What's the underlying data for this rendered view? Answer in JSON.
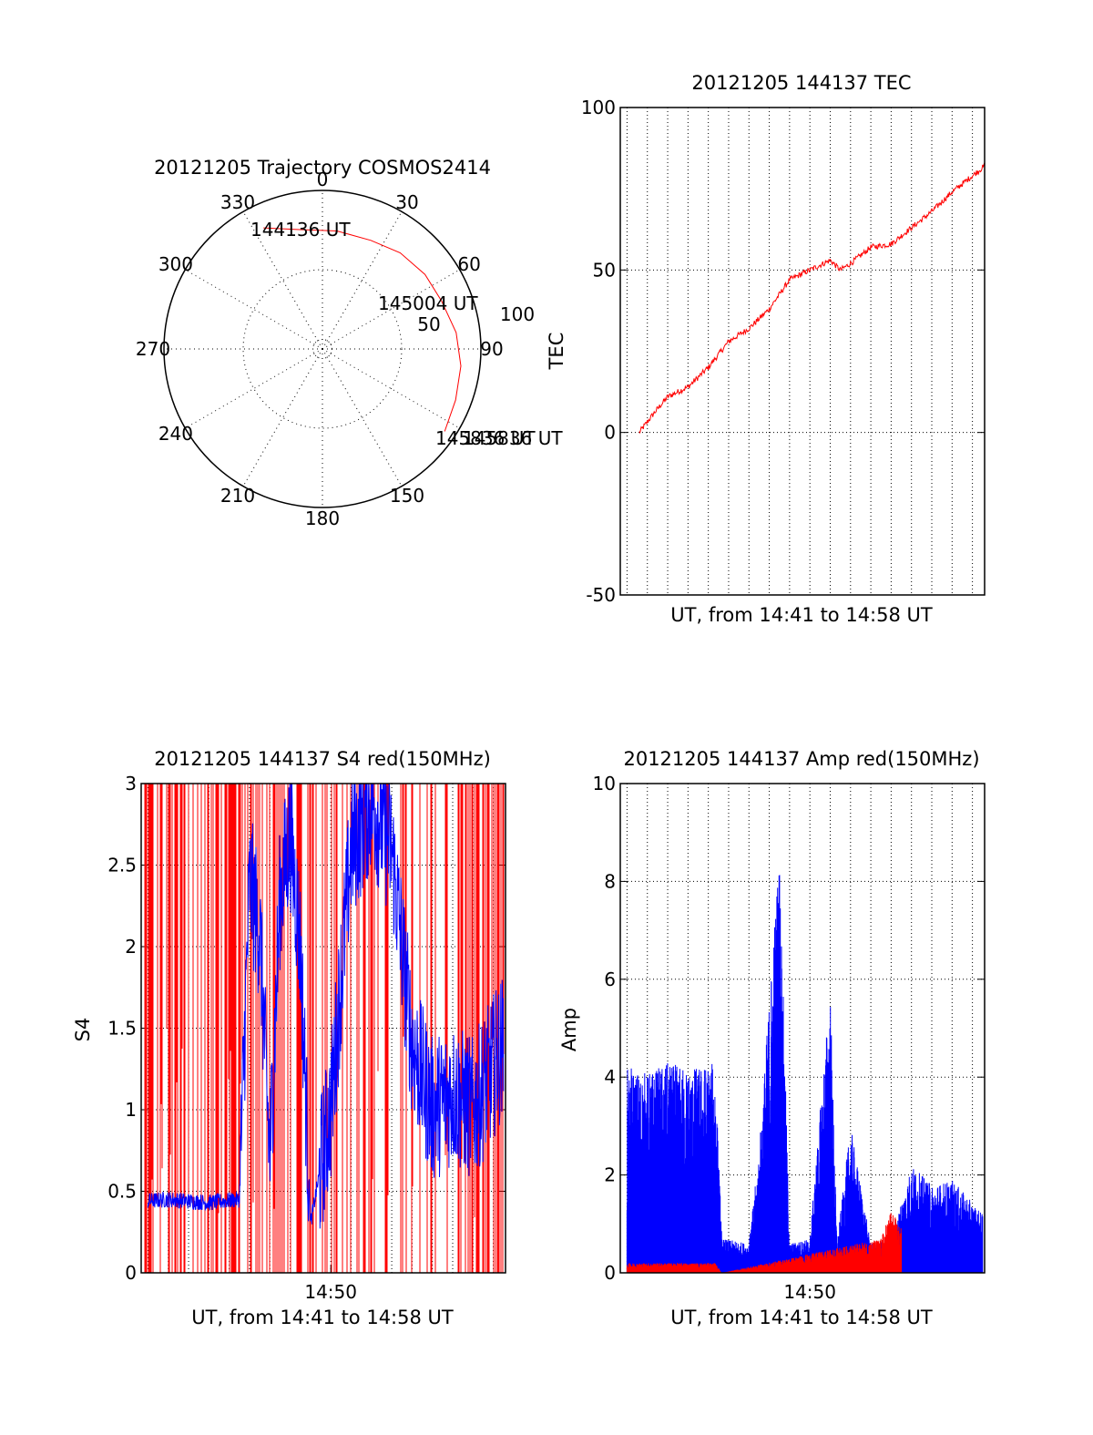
{
  "colors": {
    "foreground": "#000000",
    "background": "#ffffff",
    "red_series": "#ff0000",
    "blue_series": "#0000ff",
    "grid": "#000000"
  },
  "chart_data": [
    {
      "id": "trajectory",
      "type": "polar",
      "title": "20121205 Trajectory COSMOS2414",
      "azimuth_labels": [
        "0",
        "30",
        "60",
        "90",
        "150",
        "180",
        "210",
        "240",
        "270",
        "300",
        "330"
      ],
      "radial_labels": [
        "50",
        "100"
      ],
      "r_max": 100,
      "grid": true,
      "series": [
        {
          "color": "#ff0000",
          "points": [
            {
              "az": 334,
              "r": 85
            },
            {
              "az": 348,
              "r": 77
            },
            {
              "az": 7,
              "r": 75
            },
            {
              "az": 24,
              "r": 75
            },
            {
              "az": 39,
              "r": 78
            },
            {
              "az": 54,
              "r": 80
            },
            {
              "az": 68,
              "r": 81
            },
            {
              "az": 83,
              "r": 85
            },
            {
              "az": 97,
              "r": 88
            },
            {
              "az": 111,
              "r": 90
            },
            {
              "az": 124,
              "r": 93
            }
          ]
        }
      ],
      "annotations": [
        {
          "text": "144136 UT",
          "at": "start"
        },
        {
          "text": "145004 UT",
          "at": "mid"
        },
        {
          "text": "145836 UT",
          "at": "end"
        },
        {
          "text": "145836 UT",
          "at": "end-overlap"
        }
      ]
    },
    {
      "id": "tec",
      "type": "line",
      "title": "20121205 144137 TEC",
      "ylabel": "TEC",
      "xlabel": "UT, from 14:41 to 14:58 UT",
      "xlim": [
        "14:40:40",
        "14:58:36"
      ],
      "ylim": [
        -50,
        100
      ],
      "yticks": [
        "-50",
        "0",
        "50",
        "100"
      ],
      "grid": true,
      "series": [
        {
          "color": "#ff0000",
          "x": [
            "14:41:36",
            "14:42:20",
            "14:43:00",
            "14:44:00",
            "14:45:00",
            "14:46:00",
            "14:47:00",
            "14:48:00",
            "14:49:00",
            "14:50:00",
            "14:51:00",
            "14:51:30",
            "14:52:00",
            "14:53:00",
            "14:54:00",
            "14:55:00",
            "14:56:00",
            "14:57:00",
            "14:58:36"
          ],
          "y": [
            0,
            6,
            11,
            14,
            20,
            28,
            32,
            38,
            47,
            50,
            53,
            50,
            52,
            57,
            58,
            63,
            68,
            74,
            82
          ]
        }
      ]
    },
    {
      "id": "s4",
      "type": "line",
      "title": "20121205 144137 S4 red(150MHz)",
      "ylabel": "S4",
      "xlabel": "UT, from 14:41 to 14:58 UT",
      "xticks": [
        "14:50"
      ],
      "xlim": [
        "14:40:40",
        "14:58:36"
      ],
      "ylim": [
        0,
        3
      ],
      "yticks": [
        "0",
        "0.5",
        "1",
        "1.5",
        "2",
        "2.5",
        "3"
      ],
      "grid": true,
      "series": [
        {
          "color": "#0000ff",
          "x": [
            "14:41:00",
            "14:42:00",
            "14:43:00",
            "14:44:00",
            "14:45:30",
            "14:46:00",
            "14:46:30",
            "14:47:00",
            "14:47:30",
            "14:48:00",
            "14:48:30",
            "14:49:00",
            "14:50:00",
            "14:51:00",
            "14:52:00",
            "14:53:00",
            "14:54:00",
            "14:55:00",
            "14:56:00",
            "14:57:00",
            "14:58:30"
          ],
          "y": [
            0.44,
            0.45,
            0.44,
            0.43,
            0.45,
            2.4,
            2.1,
            0.7,
            2.3,
            2.7,
            2.0,
            0.3,
            1.0,
            2.6,
            2.9,
            2.6,
            1.4,
            1.0,
            1.1,
            1.0,
            1.4
          ]
        }
      ],
      "notes": "Dense red vertical spikes spanning full range 0-3 across most of the interval"
    },
    {
      "id": "amp",
      "type": "line",
      "title": "20121205 144137 Amp red(150MHz)",
      "ylabel": "Amp",
      "xlabel": "UT, from 14:41 to 14:58 UT",
      "xticks": [
        "14:50"
      ],
      "xlim": [
        "14:40:40",
        "14:58:36"
      ],
      "ylim": [
        0,
        10
      ],
      "yticks": [
        "0",
        "2",
        "4",
        "6",
        "8",
        "10"
      ],
      "grid": true,
      "series": [
        {
          "color": "#0000ff",
          "x": [
            "14:41:00",
            "14:42:00",
            "14:43:00",
            "14:44:00",
            "14:45:20",
            "14:45:40",
            "14:47:00",
            "14:47:30",
            "14:48:30",
            "14:49:00",
            "14:50:00",
            "14:51:00",
            "14:51:20",
            "14:52:00",
            "14:53:00",
            "14:54:00",
            "14:55:00",
            "14:56:00",
            "14:57:00",
            "14:58:30"
          ],
          "y": [
            4.2,
            4.1,
            4.3,
            4.2,
            4.3,
            0.7,
            0.6,
            2.5,
            8.8,
            0.6,
            0.7,
            5.9,
            0.6,
            3.0,
            0.6,
            0.7,
            2.2,
            1.8,
            1.9,
            1.2
          ]
        },
        {
          "color": "#ff0000",
          "x": [
            "14:41:00",
            "14:43:00",
            "14:45:20",
            "14:45:40",
            "14:53:30",
            "14:54:00",
            "14:54:30"
          ],
          "y": [
            0.2,
            0.2,
            0.2,
            0.0,
            0.7,
            1.3,
            0.9
          ]
        }
      ]
    }
  ]
}
